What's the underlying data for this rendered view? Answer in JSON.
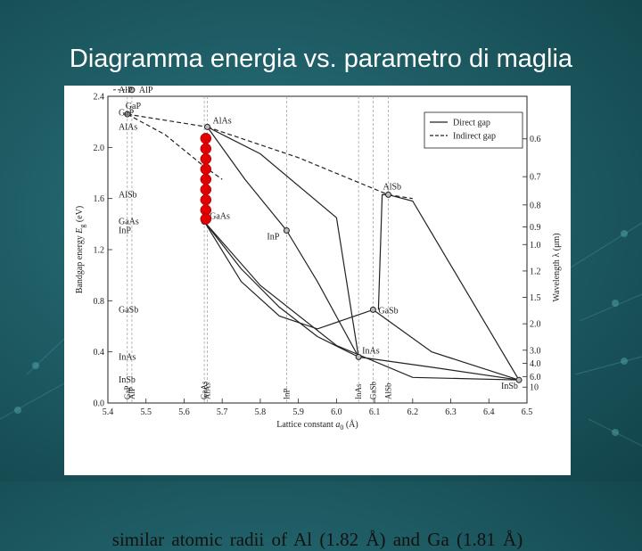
{
  "slide": {
    "title": "Diagramma energia vs. parametro di maglia",
    "caption": "similar atomic radii of Al (1.82 Å) and Ga (1.81 Å)"
  },
  "colors": {
    "background": "#1f5e66",
    "title": "#ffffff",
    "highlight": "#e00000",
    "curves": "#222222"
  },
  "chart_data": {
    "type": "line",
    "xlabel": "Lattice constant",
    "xlabel_symbol": "a",
    "xlabel_subscript": "0",
    "xlabel_unit": "(Å)",
    "ylabel": "Bandgap energy",
    "ylabel_symbol": "E",
    "ylabel_subscript": "g",
    "ylabel_unit": "(eV)",
    "right_label": "Wavelength λ (μm)",
    "xlim": [
      5.4,
      6.5
    ],
    "ylim": [
      0.0,
      2.4
    ],
    "x_ticks": [
      5.4,
      5.5,
      5.6,
      5.7,
      5.8,
      5.9,
      6.0,
      6.1,
      6.2,
      6.3,
      6.4,
      6.5
    ],
    "x_tick_labels": [
      "5.4",
      "5.5",
      "5.6",
      "5.7",
      "5.8",
      "5.9",
      "6.0",
      "6.1",
      "6.2",
      "6.3",
      "6.4",
      "6.5"
    ],
    "y_ticks": [
      0.0,
      0.4,
      0.8,
      1.2,
      1.6,
      2.0,
      2.4
    ],
    "y_tick_labels": [
      "0.0",
      "0.4",
      "0.8",
      "1.2",
      "1.6",
      "2.0",
      "2.4"
    ],
    "right_ticks": [
      {
        "e": 2.067,
        "label": "0.6"
      },
      {
        "e": 1.771,
        "label": "0.7"
      },
      {
        "e": 1.55,
        "label": "0.8"
      },
      {
        "e": 1.378,
        "label": "0.9"
      },
      {
        "e": 1.24,
        "label": "1.0"
      },
      {
        "e": 1.033,
        "label": "1.2"
      },
      {
        "e": 0.827,
        "label": "1.5"
      },
      {
        "e": 0.62,
        "label": "2.0"
      },
      {
        "e": 0.413,
        "label": "3.0"
      },
      {
        "e": 0.31,
        "label": "4.0"
      },
      {
        "e": 0.207,
        "label": "6.0"
      },
      {
        "e": 0.124,
        "label": "10"
      }
    ],
    "legend": {
      "placement": "top-right",
      "entries": [
        {
          "label": "Direct gap",
          "style": "solid"
        },
        {
          "label": "Indirect gap",
          "style": "dashed"
        }
      ]
    },
    "points": [
      {
        "name": "AlP",
        "x": 5.463,
        "y": 2.45
      },
      {
        "name": "GaP",
        "x": 5.451,
        "y": 2.26
      },
      {
        "name": "AlAs",
        "x": 5.661,
        "y": 2.16
      },
      {
        "name": "AlSb",
        "x": 6.136,
        "y": 1.63
      },
      {
        "name": "GaAs",
        "x": 5.653,
        "y": 1.42
      },
      {
        "name": "InP",
        "x": 5.869,
        "y": 1.35
      },
      {
        "name": "GaSb",
        "x": 6.096,
        "y": 0.73
      },
      {
        "name": "InAs",
        "x": 6.058,
        "y": 0.36
      },
      {
        "name": "InSb",
        "x": 6.479,
        "y": 0.18
      }
    ],
    "left_axis_labels": [
      {
        "text": "AlP",
        "y": 2.45
      },
      {
        "text": "GaP",
        "y": 2.27
      },
      {
        "text": "AlAs",
        "y": 2.16
      },
      {
        "text": "AlSb",
        "y": 1.63
      },
      {
        "text": "GaAs",
        "y": 1.42
      },
      {
        "text": "InP",
        "y": 1.35
      },
      {
        "text": "GaSb",
        "y": 0.73
      },
      {
        "text": "InAs",
        "y": 0.36
      },
      {
        "text": "InSb",
        "y": 0.18
      }
    ],
    "bottom_axis_labels": [
      {
        "text": "GaP",
        "x": 5.451
      },
      {
        "text": "AlP",
        "x": 5.463
      },
      {
        "text": "GaAs",
        "x": 5.653
      },
      {
        "text": "AlAs",
        "x": 5.661
      },
      {
        "text": "InP",
        "x": 5.869
      },
      {
        "text": "InAs",
        "x": 6.058
      },
      {
        "text": "GaSb",
        "x": 6.096
      },
      {
        "text": "AlSb",
        "x": 6.136
      }
    ],
    "series": [
      {
        "style": "solid",
        "points": [
          [
            5.653,
            1.42
          ],
          [
            5.75,
            1.05
          ],
          [
            5.85,
            0.75
          ],
          [
            5.95,
            0.52
          ],
          [
            6.058,
            0.36
          ]
        ]
      },
      {
        "style": "solid",
        "points": [
          [
            5.653,
            1.42
          ],
          [
            5.75,
            0.95
          ],
          [
            5.85,
            0.68
          ],
          [
            5.95,
            0.58
          ],
          [
            6.096,
            0.73
          ]
        ]
      },
      {
        "style": "solid",
        "points": [
          [
            5.653,
            1.42
          ],
          [
            5.8,
            0.92
          ],
          [
            6.0,
            0.45
          ],
          [
            6.2,
            0.2
          ],
          [
            6.479,
            0.18
          ]
        ]
      },
      {
        "style": "solid",
        "points": [
          [
            5.869,
            1.35
          ],
          [
            5.95,
            0.95
          ],
          [
            6.058,
            0.36
          ]
        ]
      },
      {
        "style": "solid",
        "points": [
          [
            6.058,
            0.36
          ],
          [
            6.25,
            0.28
          ],
          [
            6.479,
            0.18
          ]
        ]
      },
      {
        "style": "solid",
        "points": [
          [
            6.096,
            0.73
          ],
          [
            6.25,
            0.4
          ],
          [
            6.479,
            0.18
          ]
        ]
      },
      {
        "style": "solid",
        "points": [
          [
            5.661,
            2.16
          ],
          [
            5.76,
            1.75
          ],
          [
            5.869,
            1.35
          ]
        ]
      },
      {
        "style": "solid",
        "points": [
          [
            5.661,
            2.16
          ],
          [
            5.8,
            1.95
          ],
          [
            6.0,
            1.45
          ],
          [
            6.058,
            0.36
          ]
        ]
      },
      {
        "style": "solid",
        "points": [
          [
            6.11,
            0.73
          ],
          [
            6.12,
            1.63
          ],
          [
            6.136,
            1.63
          ]
        ]
      },
      {
        "style": "solid",
        "points": [
          [
            6.136,
            1.63
          ],
          [
            6.2,
            1.58
          ],
          [
            6.479,
            0.18
          ]
        ]
      },
      {
        "style": "dashed",
        "points": [
          [
            5.451,
            2.26
          ],
          [
            5.661,
            2.16
          ]
        ]
      },
      {
        "style": "dashed",
        "points": [
          [
            5.451,
            2.26
          ],
          [
            5.55,
            2.1
          ],
          [
            5.653,
            1.85
          ],
          [
            5.7,
            1.75
          ]
        ]
      },
      {
        "style": "dashed",
        "points": [
          [
            5.661,
            2.16
          ],
          [
            5.9,
            1.92
          ],
          [
            6.136,
            1.63
          ]
        ]
      },
      {
        "style": "dashed",
        "points": [
          [
            6.136,
            1.63
          ],
          [
            6.2,
            1.6
          ]
        ]
      }
    ],
    "highlight": {
      "x": 5.657,
      "y_values": [
        2.07,
        1.99,
        1.91,
        1.83,
        1.75,
        1.67,
        1.59,
        1.51,
        1.44
      ]
    }
  }
}
